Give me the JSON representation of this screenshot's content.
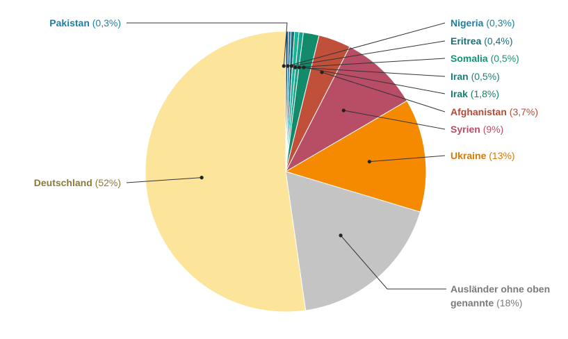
{
  "chart_data": {
    "type": "pie",
    "start_angle_deg": 0,
    "direction": "clockwise",
    "slices": [
      {
        "label": "Pakistan",
        "pct_text": "(0,3%)",
        "value": 0.3,
        "color": "#1f4e79",
        "label_color": "#1a7fa3"
      },
      {
        "label": "Nigeria",
        "pct_text": "(0,3%)",
        "value": 0.3,
        "color": "#1a7fa3",
        "label_color": "#1a7fa3"
      },
      {
        "label": "Eritrea",
        "pct_text": "(0,4%)",
        "value": 0.4,
        "color": "#1b6e7a",
        "label_color": "#1b6e7a"
      },
      {
        "label": "Somalia",
        "pct_text": "(0,5%)",
        "value": 0.5,
        "color": "#19b394",
        "label_color": "#149474"
      },
      {
        "label": "Iran",
        "pct_text": "(0,5%)",
        "value": 0.5,
        "color": "#17a08a",
        "label_color": "#1b7f79"
      },
      {
        "label": "Irak",
        "pct_text": "(1,8%)",
        "value": 1.8,
        "color": "#138a6a",
        "label_color": "#147f6a"
      },
      {
        "label": "Afghanistan",
        "pct_text": "(3,7%)",
        "value": 3.7,
        "color": "#c0503a",
        "label_color": "#b44a35"
      },
      {
        "label": "Syrien",
        "pct_text": "(9%)",
        "value": 9,
        "color": "#b84d66",
        "label_color": "#b84d66"
      },
      {
        "label": "Ukraine",
        "pct_text": "(13%)",
        "value": 13,
        "color": "#f58a00",
        "label_color": "#d77800"
      },
      {
        "label": "Ausländer ohne oben genannte",
        "label_lines": [
          "Ausländer ohne oben",
          "genannte"
        ],
        "pct_text": "(18%)",
        "value": 18,
        "color": "#c4c4c4",
        "label_color": "#7a7a7a"
      },
      {
        "label": "Deutschland",
        "pct_text": "(52%)",
        "value": 52,
        "color": "#fde49b",
        "label_color": "#8a7a3a"
      }
    ]
  }
}
